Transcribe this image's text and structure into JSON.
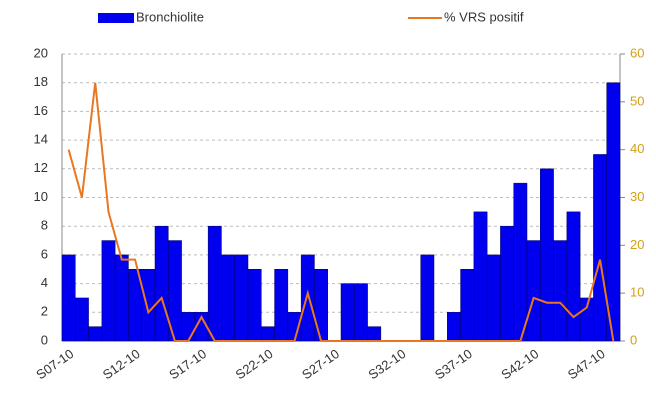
{
  "chart_data": {
    "type": "bar-line",
    "categories": [
      "S07-10",
      null,
      null,
      null,
      null,
      "S12-10",
      null,
      null,
      null,
      null,
      "S17-10",
      null,
      null,
      null,
      null,
      "S22-10",
      null,
      null,
      null,
      null,
      "S27-10",
      null,
      null,
      null,
      null,
      "S32-10",
      null,
      null,
      null,
      null,
      "S37-10",
      null,
      null,
      null,
      null,
      "S42-10",
      null,
      null,
      null,
      null,
      "S47-10",
      null
    ],
    "series": [
      {
        "name": "Bronchiolite",
        "color": "#0000ee",
        "values": [
          6,
          3,
          1,
          7,
          6,
          5,
          5,
          8,
          7,
          2,
          2,
          8,
          6,
          6,
          5,
          1,
          5,
          2,
          6,
          5,
          0,
          4,
          4,
          1,
          0,
          0,
          0,
          6,
          0,
          2,
          5,
          9,
          6,
          8,
          11,
          7,
          12,
          7,
          9,
          3,
          13,
          18
        ]
      },
      {
        "name": "% VRS positif",
        "color": "#e87722",
        "axis": "y2",
        "values": [
          40,
          30,
          54,
          27,
          17,
          17,
          6,
          9,
          0,
          0,
          5,
          0,
          0,
          0,
          0,
          0,
          0,
          0,
          10,
          0,
          0,
          0,
          0,
          0,
          0,
          0,
          0,
          0,
          0,
          0,
          0,
          0,
          0,
          0,
          0,
          9,
          8,
          8,
          5,
          7,
          17,
          0
        ]
      }
    ],
    "ylim": [
      0,
      20
    ],
    "yticks": [
      0,
      2,
      4,
      6,
      8,
      10,
      12,
      14,
      16,
      18,
      20
    ],
    "y2lim": [
      0,
      60
    ],
    "y2ticks": [
      0,
      10,
      20,
      30,
      40,
      50,
      60
    ],
    "y2color": "#d4a017",
    "grid": true
  }
}
